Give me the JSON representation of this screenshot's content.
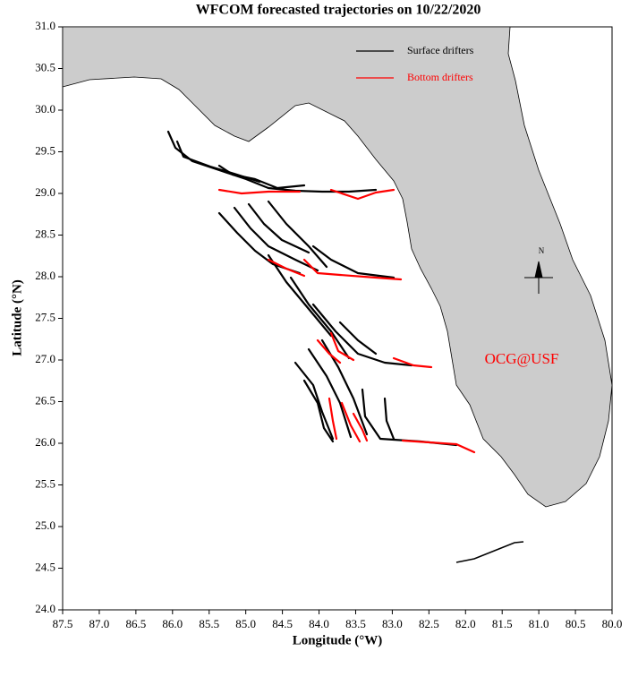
{
  "chart_data": {
    "type": "map",
    "title": "WFCOM forecasted trajectories on 10/22/2020",
    "xlabel": "Longitude (°W)",
    "ylabel": "Latitude (°N)",
    "xlim": [
      87.5,
      80.0
    ],
    "ylim": [
      24.0,
      31.0
    ],
    "xticks": [
      87.5,
      {
        "value": 87,
        "label": "87.0"
      },
      86.5,
      {
        "value": 86,
        "label": "86.0"
      },
      85.5,
      {
        "value": 85,
        "label": "85.0"
      },
      84.5,
      {
        "value": 84,
        "label": "84.0"
      },
      83.5,
      {
        "value": 83,
        "label": "83.0"
      },
      82.5,
      {
        "value": 82,
        "label": "82.0"
      },
      81.5,
      {
        "value": 81,
        "label": "81.0"
      },
      80.5,
      {
        "value": 80,
        "label": "80.0"
      }
    ],
    "yticks": [
      {
        "value": 24,
        "label": "24.0"
      },
      24.5,
      {
        "value": 25,
        "label": "25.0"
      },
      25.5,
      {
        "value": 26,
        "label": "26.0"
      },
      26.5,
      {
        "value": 27,
        "label": "27.0"
      },
      27.5,
      {
        "value": 28,
        "label": "28.0"
      },
      28.5,
      {
        "value": 29,
        "label": "29.0"
      },
      29.5,
      {
        "value": 30,
        "label": "30.0"
      },
      30.5,
      {
        "value": 31,
        "label": "31.0"
      }
    ],
    "series": [
      {
        "name": "Surface drifters",
        "color": "#000000"
      },
      {
        "name": "Bottom drifters",
        "color": "#ff0000"
      }
    ],
    "annotation": "OCG@USF",
    "compass_label": "N"
  }
}
